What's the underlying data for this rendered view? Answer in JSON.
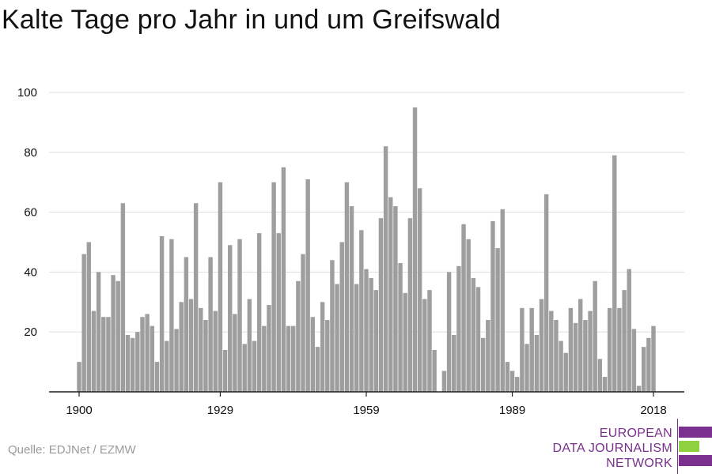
{
  "title": "Kalte Tage pro Jahr in und um Greifswald",
  "source": "Quelle: EDJNet / EZMW",
  "logo": {
    "line1": "EUROPEAN",
    "line2": "DATA JOURNALISM",
    "line3": "NETWORK",
    "colors": {
      "purple": "#7b2f8e",
      "green": "#8fd13f"
    }
  },
  "colors": {
    "bar": "#9e9e9e",
    "grid": "#dddddd",
    "axis": "#222222",
    "text": "#111111",
    "source": "#9a9a9a"
  },
  "chart_data": {
    "type": "bar",
    "title": "Kalte Tage pro Jahr in und um Greifswald",
    "xlabel": "",
    "ylabel": "",
    "x_start": 1900,
    "x_end": 2018,
    "xticks": [
      1900,
      1929,
      1959,
      1989,
      2018
    ],
    "yticks": [
      20,
      40,
      60,
      80,
      100
    ],
    "ylim": [
      0,
      100
    ],
    "grid": true,
    "legend": "none",
    "categories": [
      1900,
      1901,
      1902,
      1903,
      1904,
      1905,
      1906,
      1907,
      1908,
      1909,
      1910,
      1911,
      1912,
      1913,
      1914,
      1915,
      1916,
      1917,
      1918,
      1919,
      1920,
      1921,
      1922,
      1923,
      1924,
      1925,
      1926,
      1927,
      1928,
      1929,
      1930,
      1931,
      1932,
      1933,
      1934,
      1935,
      1936,
      1937,
      1938,
      1939,
      1940,
      1941,
      1942,
      1943,
      1944,
      1945,
      1946,
      1947,
      1948,
      1949,
      1950,
      1951,
      1952,
      1953,
      1954,
      1955,
      1956,
      1957,
      1958,
      1959,
      1960,
      1961,
      1962,
      1963,
      1964,
      1965,
      1966,
      1967,
      1968,
      1969,
      1970,
      1971,
      1972,
      1973,
      1974,
      1975,
      1976,
      1977,
      1978,
      1979,
      1980,
      1981,
      1982,
      1983,
      1984,
      1985,
      1986,
      1987,
      1988,
      1989,
      1990,
      1991,
      1992,
      1993,
      1994,
      1995,
      1996,
      1997,
      1998,
      1999,
      2000,
      2001,
      2002,
      2003,
      2004,
      2005,
      2006,
      2007,
      2008,
      2009,
      2010,
      2011,
      2012,
      2013,
      2014,
      2015,
      2016,
      2017,
      2018
    ],
    "values": [
      10,
      46,
      50,
      27,
      40,
      25,
      25,
      39,
      37,
      63,
      19,
      18,
      20,
      25,
      26,
      22,
      10,
      52,
      17,
      51,
      21,
      30,
      45,
      31,
      63,
      28,
      24,
      45,
      27,
      70,
      14,
      49,
      26,
      51,
      16,
      31,
      17,
      53,
      22,
      29,
      70,
      53,
      75,
      22,
      22,
      37,
      46,
      71,
      25,
      15,
      30,
      24,
      44,
      36,
      50,
      70,
      62,
      36,
      54,
      41,
      38,
      34,
      58,
      82,
      65,
      62,
      43,
      33,
      58,
      95,
      68,
      31,
      34,
      14,
      0,
      7,
      40,
      19,
      42,
      56,
      51,
      38,
      35,
      18,
      24,
      57,
      48,
      61,
      10,
      7,
      5,
      28,
      16,
      28,
      19,
      31,
      66,
      27,
      24,
      17,
      13,
      28,
      23,
      31,
      24,
      27,
      37,
      11,
      5,
      28,
      79,
      28,
      34,
      41,
      21,
      2,
      15,
      18,
      22
    ]
  }
}
